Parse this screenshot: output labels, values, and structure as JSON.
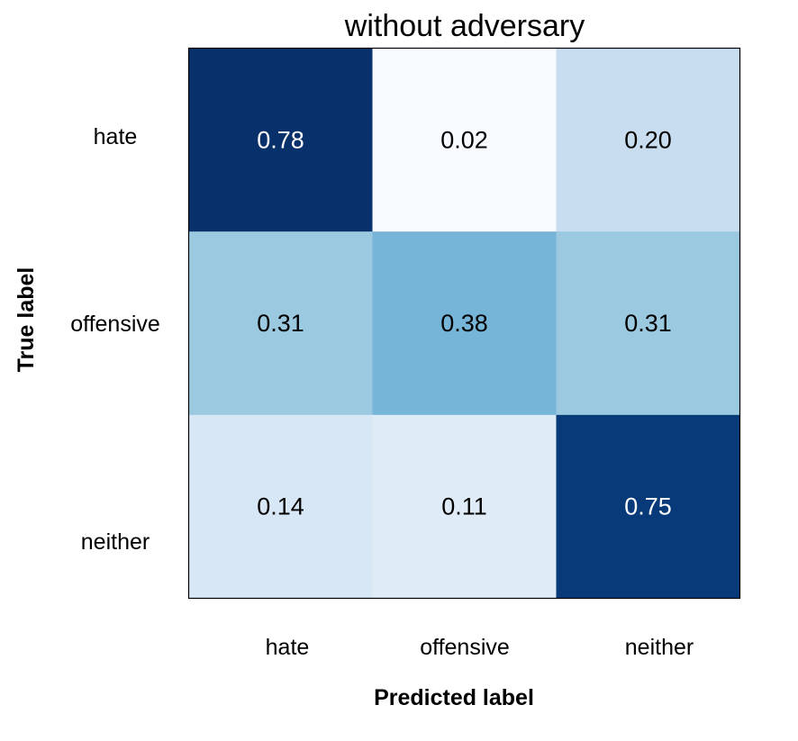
{
  "chart_data": {
    "type": "heatmap",
    "title": "without adversary",
    "xlabel": "Predicted label",
    "ylabel": "True label",
    "x_categories": [
      "hate",
      "offensive",
      "neither"
    ],
    "y_categories": [
      "hate",
      "offensive",
      "neither"
    ],
    "values": [
      [
        0.78,
        0.02,
        0.2
      ],
      [
        0.31,
        0.38,
        0.31
      ],
      [
        0.14,
        0.11,
        0.75
      ]
    ],
    "value_labels": [
      [
        "0.78",
        "0.02",
        "0.20"
      ],
      [
        "0.31",
        "0.38",
        "0.31"
      ],
      [
        "0.14",
        "0.11",
        "0.75"
      ]
    ],
    "colormap": "Blues",
    "colormap_stops": [
      "#f7fbff",
      "#deebf7",
      "#c6dbef",
      "#9ecae1",
      "#6baed6",
      "#4292c6",
      "#2171b5",
      "#08519c",
      "#08306b"
    ],
    "color_range": [
      0.02,
      0.78
    ],
    "text_color_dark": "#000000",
    "text_color_light": "#ffffff",
    "grid": false,
    "colorbar": false
  }
}
